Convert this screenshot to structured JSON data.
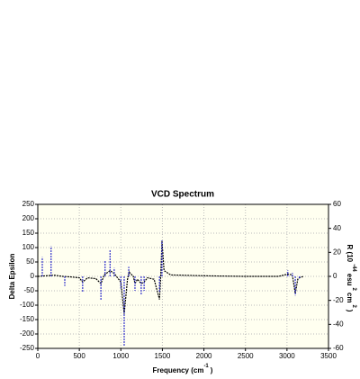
{
  "chart_data": {
    "type": "spectrum",
    "title": "VCD Spectrum",
    "xlabel": {
      "text": "Frequency (cm",
      "sup": "-1",
      "end": ")"
    },
    "ylabel": "Delta Epsilon",
    "y2label": [
      "R (10",
      "-44",
      "esu",
      "2",
      "cm",
      "2",
      ")"
    ],
    "xlim": [
      0,
      3500
    ],
    "xticks": [
      0,
      500,
      1000,
      1500,
      2000,
      2500,
      3000,
      3500
    ],
    "ylim": [
      -250,
      250
    ],
    "yticks": [
      -250,
      -200,
      -150,
      -100,
      -50,
      0,
      50,
      100,
      150,
      200,
      250
    ],
    "y2lim": [
      -60,
      60
    ],
    "y2ticks": [
      -60,
      -40,
      -20,
      0,
      20,
      40,
      60
    ],
    "grid": true,
    "series": [
      {
        "color": "#000000",
        "style": "line",
        "x": [
          0,
          100,
          200,
          300,
          400,
          500,
          540,
          600,
          700,
          760,
          800,
          870,
          920,
          960,
          1000,
          1040,
          1080,
          1100,
          1150,
          1170,
          1200,
          1245,
          1280,
          1320,
          1400,
          1465,
          1480,
          1495,
          1520,
          1600,
          2000,
          2500,
          2900,
          3010,
          3065,
          3100,
          3130,
          3150,
          3200
        ],
        "values": [
          0,
          2,
          4,
          0,
          -2,
          -5,
          -20,
          -5,
          -8,
          -25,
          5,
          20,
          10,
          -5,
          -20,
          -130,
          -10,
          15,
          0,
          -25,
          -10,
          -25,
          -20,
          -5,
          -10,
          -80,
          0,
          122,
          20,
          5,
          2,
          0,
          0,
          8,
          5,
          -60,
          -10,
          -5,
          0
        ]
      },
      {
        "color": "#3333cc",
        "style": "sticks",
        "axis": "y2",
        "x": [
          54,
          160,
          325,
          540,
          760,
          810,
          870,
          920,
          1000,
          1040,
          1095,
          1170,
          1245,
          1280,
          1465,
          1495,
          3010,
          3065,
          3100,
          3150
        ],
        "values": [
          16,
          25,
          -8,
          -13,
          -20,
          13,
          22,
          7,
          -10,
          -58,
          8,
          -12,
          -15,
          -12,
          -13,
          30,
          5,
          3,
          -16,
          -2
        ]
      }
    ]
  }
}
